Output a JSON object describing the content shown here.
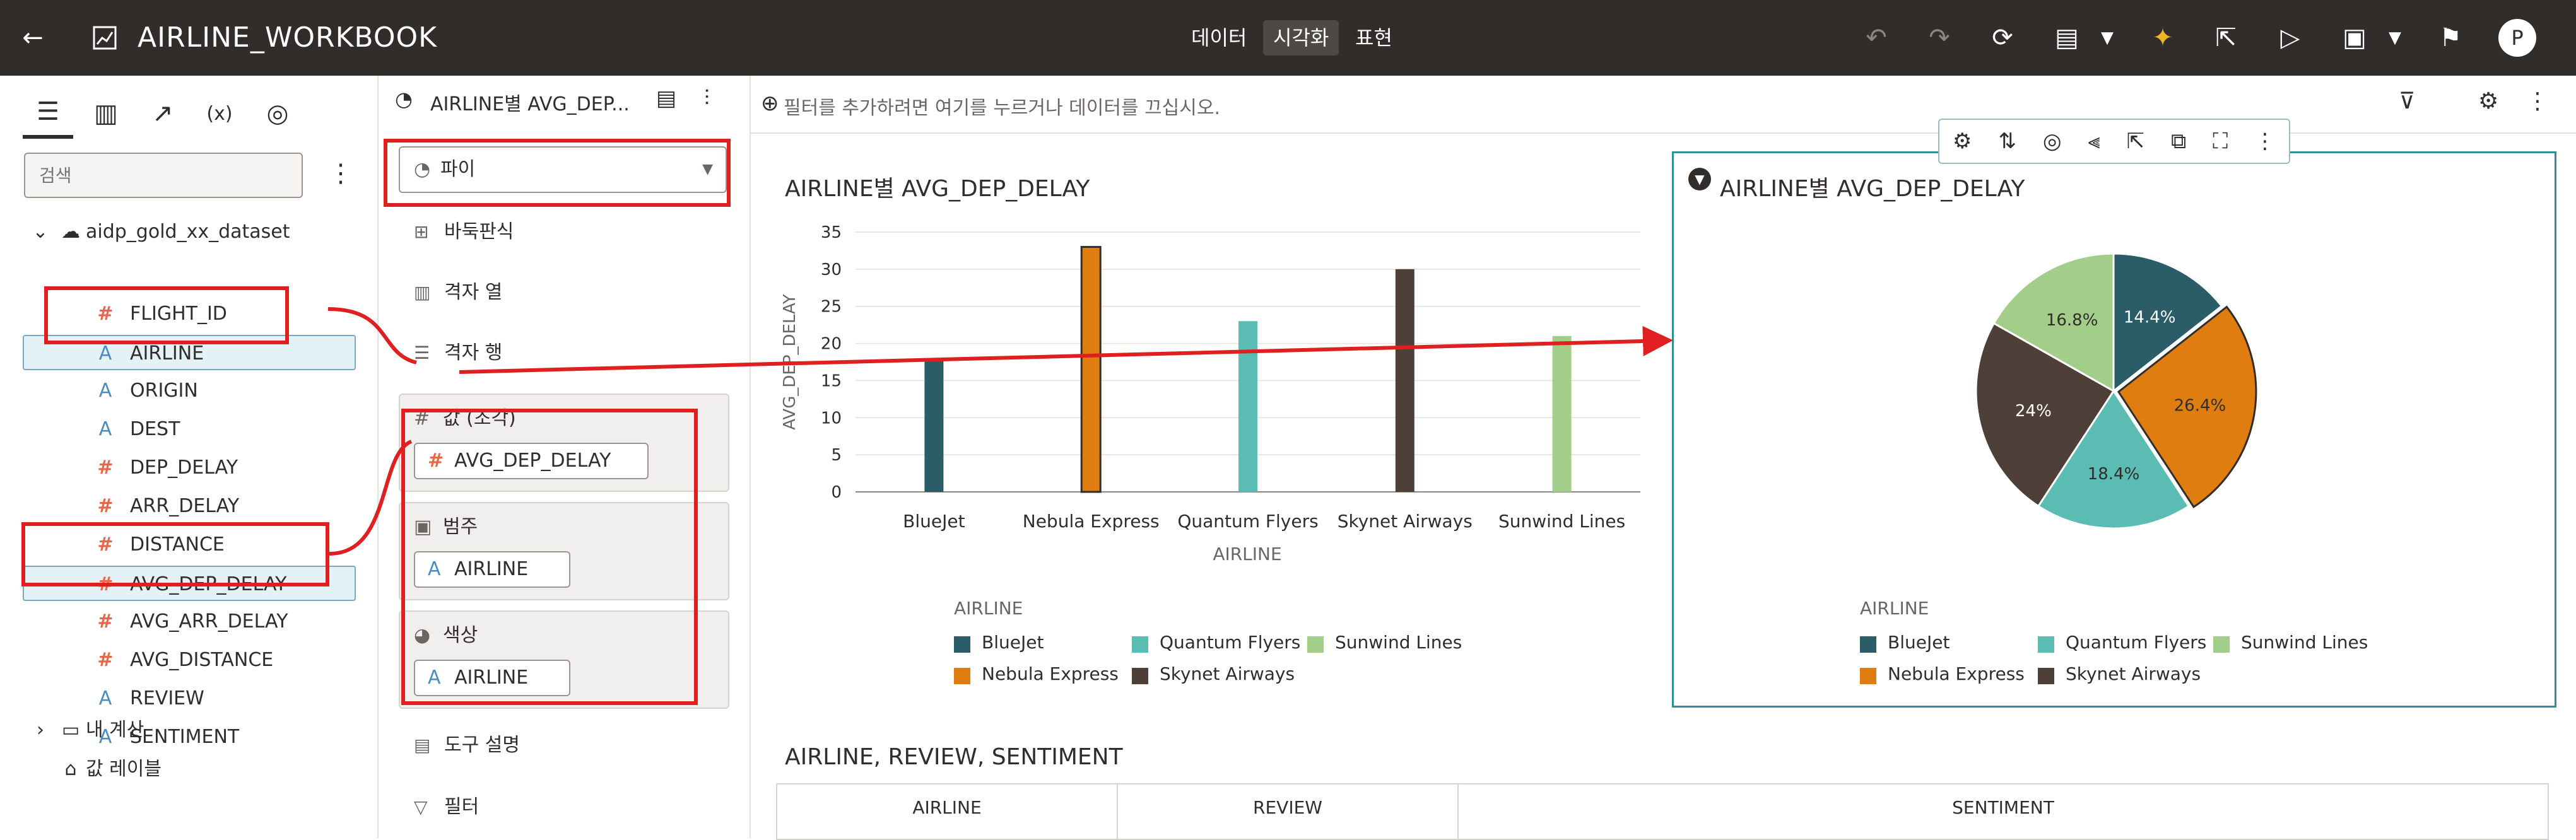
{
  "app": {
    "title": "AIRLINE_WORKBOOK"
  },
  "modes": [
    {
      "label": "데이터",
      "active": false
    },
    {
      "label": "시각화",
      "active": true
    },
    {
      "label": "표현",
      "active": false
    }
  ],
  "user": {
    "initial": "P"
  },
  "search": {
    "placeholder": "검색"
  },
  "dataset": {
    "name": "aidp_gold_xx_dataset",
    "fields": [
      {
        "name": "FLIGHT_ID",
        "type": "#"
      },
      {
        "name": "AIRLINE",
        "type": "A"
      },
      {
        "name": "ORIGIN",
        "type": "A"
      },
      {
        "name": "DEST",
        "type": "A"
      },
      {
        "name": "DEP_DELAY",
        "type": "#"
      },
      {
        "name": "ARR_DELAY",
        "type": "#"
      },
      {
        "name": "DISTANCE",
        "type": "#"
      },
      {
        "name": "AVG_DEP_DELAY",
        "type": "#"
      },
      {
        "name": "AVG_ARR_DELAY",
        "type": "#"
      },
      {
        "name": "AVG_DISTANCE",
        "type": "#"
      },
      {
        "name": "REVIEW",
        "type": "A"
      },
      {
        "name": "SENTIMENT",
        "type": "A"
      }
    ],
    "my_calcs": "내 계산",
    "value_labels": "값 레이블"
  },
  "grammar": {
    "title": "AIRLINE별 AVG_DEP...",
    "chart_type": "파이",
    "items": {
      "trellis": "바둑판식",
      "grid_col": "격자 열",
      "grid_row": "격자 행",
      "tooltip": "도구 설명",
      "filter": "필터"
    },
    "wells": {
      "value_label": "값 (조각)",
      "value_pill": "AVG_DEP_DELAY",
      "category_label": "범주",
      "category_pill": "AIRLINE",
      "color_label": "색상",
      "color_pill": "AIRLINE"
    }
  },
  "filterbar": {
    "placeholder": "필터를 추가하려면 여기를 누르거나 데이터를 끄십시오."
  },
  "viz1": {
    "title": "AIRLINE별 AVG_DEP_DELAY",
    "legend_title": "AIRLINE",
    "x_axis_label": "AIRLINE",
    "y_axis_label": "AVG_DEP_DELAY"
  },
  "viz2": {
    "title": "AIRLINE별 AVG_DEP_DELAY",
    "legend_title": "AIRLINE"
  },
  "table": {
    "title": "AIRLINE, REVIEW, SENTIMENT",
    "columns": [
      "AIRLINE",
      "REVIEW",
      "SENTIMENT"
    ]
  },
  "colors": {
    "BlueJet": "#2b5d68",
    "Nebula Express": "#e07d10",
    "Quantum Flyers": "#5bbcb3",
    "Skynet Airways": "#4e3f38",
    "Sunwind Lines": "#a3ce8a"
  },
  "chart_data": [
    {
      "type": "bar",
      "categories": [
        "BlueJet",
        "Nebula Express",
        "Quantum Flyers",
        "Skynet Airways",
        "Sunwind Lines"
      ],
      "values": [
        18,
        33,
        23,
        30,
        21
      ],
      "title": "AIRLINE별 AVG_DEP_DELAY",
      "xlabel": "AIRLINE",
      "ylabel": "AVG_DEP_DELAY",
      "ylim": [
        0,
        35
      ],
      "yticks": [
        0,
        5,
        10,
        15,
        20,
        25,
        30,
        35
      ],
      "grid": true,
      "legend": "bottom-left",
      "highlighted": "Nebula Express"
    },
    {
      "type": "pie",
      "title": "AIRLINE별 AVG_DEP_DELAY",
      "slices": [
        {
          "name": "BlueJet",
          "value": 14.4,
          "label": "14.4%"
        },
        {
          "name": "Nebula Express",
          "value": 26.4,
          "label": "26.4%"
        },
        {
          "name": "Quantum Flyers",
          "value": 18.4,
          "label": "18.4%"
        },
        {
          "name": "Skynet Airways",
          "value": 24,
          "label": "24%"
        },
        {
          "name": "Sunwind Lines",
          "value": 16.8,
          "label": "16.8%"
        }
      ],
      "highlighted": "Nebula Express",
      "legend": "bottom-left"
    }
  ]
}
